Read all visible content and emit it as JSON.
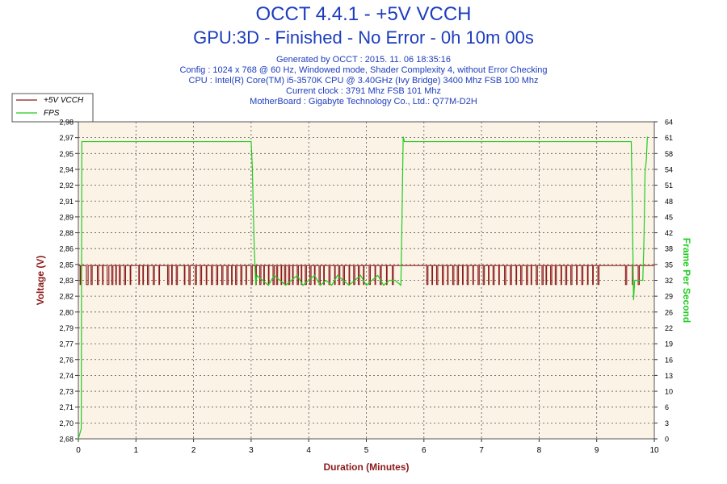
{
  "header": {
    "title": "OCCT 4.4.1 - +5V VCCH",
    "subtitle": "GPU:3D - Finished - No Error - 0h 10m 00s",
    "info_lines": [
      "Generated by OCCT : 2015. 11. 06 18:35:16",
      "Config : 1024 x 768 @ 60 Hz, Windowed mode, Shader Complexity 4, without Error Checking",
      "CPU : Intel(R) Core(TM) i5-3570K CPU @ 3.40GHz (Ivy Bridge) 3400 Mhz FSB 100 Mhz",
      "Current clock : 3791 Mhz FSB 101 Mhz",
      "MotherBoard : Gigabyte Technology Co., Ltd.: Q77M-D2H"
    ]
  },
  "colors": {
    "voltage": "#8b1a1a",
    "fps": "#22cc22",
    "title": "#1d3dbe",
    "plot_bg": "#fbf3e6",
    "axis_label_voltage": "#8b1a1a",
    "axis_label_fps": "#22cc22",
    "xlabel": "#8b1a1a"
  },
  "chart_data": {
    "type": "line",
    "xlabel": "Duration (Minutes)",
    "ylabel_left": "Voltage (V)",
    "ylabel_right": "Frame Per Second",
    "xlim": [
      0,
      10
    ],
    "ylim_left": [
      2.68,
      2.98
    ],
    "ylim_right": [
      0,
      64
    ],
    "x_ticks": [
      "0",
      "1",
      "2",
      "3",
      "4",
      "5",
      "6",
      "7",
      "8",
      "9",
      "10"
    ],
    "y_ticks_left": [
      "2,68",
      "2,70",
      "2,71",
      "2,73",
      "2,74",
      "2,76",
      "2,77",
      "2,79",
      "2,80",
      "2,82",
      "2,83",
      "2,85",
      "2,86",
      "2,88",
      "2,89",
      "2,91",
      "2,92",
      "2,94",
      "2,95",
      "2,97",
      "2,98"
    ],
    "y_ticks_right": [
      "0",
      "3",
      "6",
      "10",
      "13",
      "16",
      "19",
      "22",
      "26",
      "29",
      "32",
      "35",
      "38",
      "42",
      "45",
      "48",
      "51",
      "54",
      "58",
      "61",
      "64"
    ],
    "grid": true,
    "legend_position": "top-left",
    "series": [
      {
        "name": "+5V VCCH",
        "axis": "left",
        "baseline": 2.844,
        "dip_value": 2.826,
        "dips": [
          [
            0.03,
            0.04
          ],
          [
            0.14,
            0.17
          ],
          [
            0.22,
            0.24
          ],
          [
            0.33,
            0.35
          ],
          [
            0.42,
            0.43
          ],
          [
            0.5,
            0.53
          ],
          [
            0.58,
            0.6
          ],
          [
            0.65,
            0.66
          ],
          [
            0.71,
            0.73
          ],
          [
            0.8,
            0.82
          ],
          [
            0.9,
            0.91
          ],
          [
            1.05,
            1.06
          ],
          [
            1.12,
            1.13
          ],
          [
            1.2,
            1.22
          ],
          [
            1.3,
            1.32
          ],
          [
            1.4,
            1.41
          ],
          [
            1.55,
            1.57
          ],
          [
            1.62,
            1.63
          ],
          [
            1.7,
            1.72
          ],
          [
            1.84,
            1.85
          ],
          [
            1.92,
            1.94
          ],
          [
            2.03,
            2.05
          ],
          [
            2.12,
            2.14
          ],
          [
            2.22,
            2.23
          ],
          [
            2.31,
            2.33
          ],
          [
            2.4,
            2.42
          ],
          [
            2.49,
            2.51
          ],
          [
            2.58,
            2.6
          ],
          [
            2.66,
            2.67
          ],
          [
            2.73,
            2.75
          ],
          [
            2.82,
            2.84
          ],
          [
            2.91,
            2.92
          ],
          [
            3.0,
            3.02
          ],
          [
            3.08,
            3.09
          ],
          [
            3.15,
            3.17
          ],
          [
            3.22,
            3.23
          ],
          [
            3.3,
            3.31
          ],
          [
            3.38,
            3.4
          ],
          [
            3.44,
            3.46
          ],
          [
            3.52,
            3.53
          ],
          [
            3.58,
            3.6
          ],
          [
            3.65,
            3.67
          ],
          [
            3.72,
            3.73
          ],
          [
            3.8,
            3.82
          ],
          [
            3.87,
            3.88
          ],
          [
            3.94,
            3.96
          ],
          [
            4.02,
            4.04
          ],
          [
            4.1,
            4.11
          ],
          [
            4.18,
            4.2
          ],
          [
            4.26,
            4.27
          ],
          [
            4.35,
            4.37
          ],
          [
            4.45,
            4.46
          ],
          [
            4.52,
            4.54
          ],
          [
            4.6,
            4.62
          ],
          [
            4.7,
            4.71
          ],
          [
            4.78,
            4.8
          ],
          [
            4.86,
            4.88
          ],
          [
            4.95,
            4.96
          ],
          [
            5.05,
            5.07
          ],
          [
            5.15,
            5.16
          ],
          [
            5.24,
            5.26
          ],
          [
            5.35,
            5.36
          ],
          [
            5.45,
            5.47
          ],
          [
            6.05,
            6.07
          ],
          [
            6.14,
            6.15
          ],
          [
            6.22,
            6.24
          ],
          [
            6.32,
            6.34
          ],
          [
            6.41,
            6.42
          ],
          [
            6.5,
            6.52
          ],
          [
            6.58,
            6.6
          ],
          [
            6.67,
            6.68
          ],
          [
            6.75,
            6.77
          ],
          [
            6.85,
            6.86
          ],
          [
            6.94,
            6.96
          ],
          [
            7.03,
            7.05
          ],
          [
            7.12,
            7.13
          ],
          [
            7.2,
            7.22
          ],
          [
            7.3,
            7.31
          ],
          [
            7.4,
            7.42
          ],
          [
            7.5,
            7.52
          ],
          [
            7.6,
            7.61
          ],
          [
            7.68,
            7.7
          ],
          [
            7.78,
            7.8
          ],
          [
            7.86,
            7.87
          ],
          [
            7.95,
            7.97
          ],
          [
            8.05,
            8.07
          ],
          [
            8.12,
            8.13
          ],
          [
            8.2,
            8.22
          ],
          [
            8.28,
            8.3
          ],
          [
            8.38,
            8.39
          ],
          [
            8.46,
            8.48
          ],
          [
            8.55,
            8.57
          ],
          [
            8.65,
            8.66
          ],
          [
            8.74,
            8.76
          ],
          [
            8.84,
            8.85
          ],
          [
            8.93,
            8.94
          ],
          [
            9.02,
            9.04
          ],
          [
            9.5,
            9.52
          ],
          [
            9.62,
            9.63
          ],
          [
            9.72,
            9.74
          ]
        ]
      },
      {
        "name": "FPS",
        "axis": "right",
        "points": [
          [
            0,
            0
          ],
          [
            0.05,
            2
          ],
          [
            0.06,
            60
          ],
          [
            3.0,
            60
          ],
          [
            3.02,
            55
          ],
          [
            3.05,
            40
          ],
          [
            3.08,
            31
          ],
          [
            3.1,
            33
          ],
          [
            3.2,
            32
          ],
          [
            3.3,
            31
          ],
          [
            3.4,
            33
          ],
          [
            3.5,
            32
          ],
          [
            3.6,
            31
          ],
          [
            3.7,
            32
          ],
          [
            3.8,
            33
          ],
          [
            3.9,
            31
          ],
          [
            4.0,
            32
          ],
          [
            4.1,
            33
          ],
          [
            4.2,
            31
          ],
          [
            4.3,
            32
          ],
          [
            4.4,
            31
          ],
          [
            4.5,
            33
          ],
          [
            4.6,
            32
          ],
          [
            4.7,
            31
          ],
          [
            4.8,
            32
          ],
          [
            4.9,
            33
          ],
          [
            5.0,
            31
          ],
          [
            5.1,
            32
          ],
          [
            5.2,
            33
          ],
          [
            5.3,
            31
          ],
          [
            5.4,
            32
          ],
          [
            5.5,
            32
          ],
          [
            5.6,
            31
          ],
          [
            5.62,
            45
          ],
          [
            5.64,
            61
          ],
          [
            5.66,
            60
          ],
          [
            9.6,
            60
          ],
          [
            9.62,
            45
          ],
          [
            9.64,
            28
          ],
          [
            9.66,
            32
          ],
          [
            9.8,
            32
          ],
          [
            9.82,
            40
          ],
          [
            9.84,
            54
          ],
          [
            9.86,
            56
          ],
          [
            9.88,
            61
          ]
        ]
      }
    ]
  }
}
